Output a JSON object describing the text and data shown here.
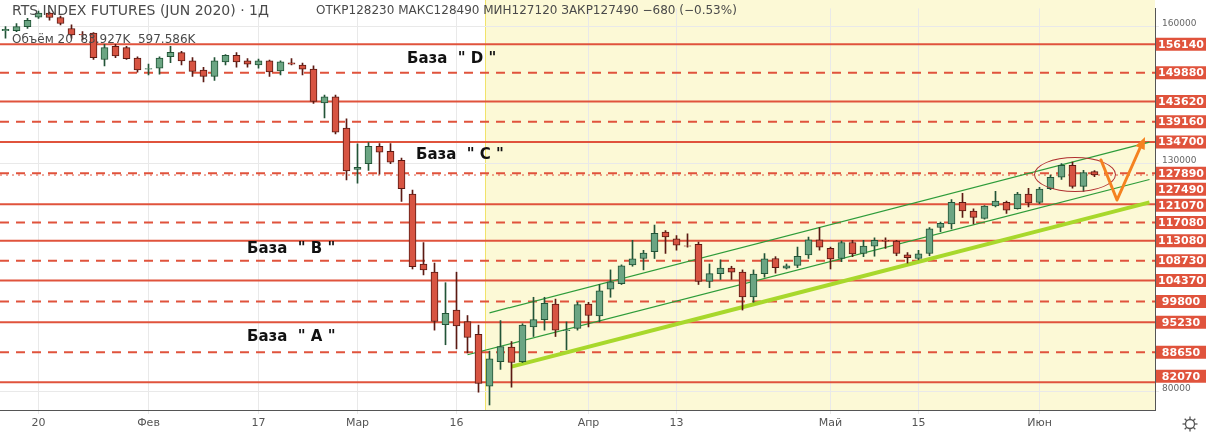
{
  "chart_data": {
    "type": "candlestick",
    "title": "RTS INDEX FUTURES (JUN 2020) · 1Д",
    "subtitle": "ОТКР128230  МАКС128490  МИН127120  ЗАКР127490  −680 (−0.53%)",
    "categories": [
      null,
      null,
      null,
      "20",
      null,
      null,
      null,
      null,
      null,
      null,
      null,
      null,
      null,
      "Фев",
      null,
      null,
      null,
      null,
      null,
      null,
      null,
      null,
      null,
      "17",
      null,
      null,
      null,
      null,
      null,
      null,
      null,
      null,
      "Мар",
      null,
      null,
      null,
      null,
      null,
      null,
      null,
      null,
      "16",
      null,
      null,
      null,
      null,
      null,
      null,
      null,
      null,
      null,
      null,
      null,
      "Апр",
      null,
      null,
      null,
      null,
      null,
      null,
      null,
      "13",
      null,
      null,
      null,
      null,
      null,
      null,
      null,
      null,
      null,
      null,
      null,
      null,
      null,
      "Май",
      null,
      null,
      null,
      null,
      null,
      null,
      null,
      "15",
      null,
      null,
      null,
      null,
      null,
      null,
      null,
      null,
      null,
      null,
      "Июн",
      null,
      null,
      null,
      null,
      null,
      null,
      null,
      null,
      null,
      null
    ],
    "ohlc": [
      [
        159100,
        160000,
        157500,
        159400
      ],
      [
        159100,
        160700,
        158900,
        160000
      ],
      [
        160000,
        161800,
        159600,
        161400
      ],
      [
        162100,
        163400,
        161800,
        163000
      ],
      [
        163000,
        163200,
        161400,
        162000
      ],
      [
        162000,
        162300,
        160400,
        160700
      ],
      [
        159600,
        160400,
        157500,
        158200
      ],
      [
        158300,
        158900,
        157100,
        158200
      ],
      [
        158600,
        158700,
        152800,
        153200
      ],
      [
        152800,
        156100,
        151400,
        155400
      ],
      [
        155700,
        156100,
        153200,
        153600
      ],
      [
        155400,
        155700,
        152800,
        153000
      ],
      [
        153100,
        153400,
        150000,
        150500
      ],
      [
        150700,
        151800,
        149400,
        150800
      ],
      [
        150900,
        153400,
        149600,
        153100
      ],
      [
        153400,
        155700,
        152100,
        154400
      ],
      [
        154300,
        154600,
        151600,
        152500
      ],
      [
        152500,
        153200,
        149100,
        150200
      ],
      [
        150500,
        151100,
        147900,
        149100
      ],
      [
        149100,
        153200,
        148200,
        152500
      ],
      [
        152300,
        153900,
        151600,
        153700
      ],
      [
        153700,
        154300,
        151100,
        152300
      ],
      [
        152500,
        153000,
        151100,
        151800
      ],
      [
        151600,
        152900,
        150900,
        152500
      ],
      [
        152500,
        152700,
        149100,
        150100
      ],
      [
        150300,
        152500,
        149400,
        152300
      ],
      [
        152100,
        153000,
        151600,
        151800
      ],
      [
        151600,
        152000,
        149400,
        150700
      ],
      [
        150700,
        151400,
        143200,
        143600
      ],
      [
        143300,
        145000,
        140000,
        144600
      ],
      [
        144600,
        145000,
        136500,
        136900
      ],
      [
        137800,
        139800,
        126400,
        128400
      ],
      [
        128700,
        134300,
        125700,
        129200
      ],
      [
        130000,
        134600,
        128500,
        133800
      ],
      [
        133800,
        134400,
        127700,
        132500
      ],
      [
        132700,
        134400,
        130000,
        130300
      ],
      [
        130700,
        131200,
        121700,
        124500
      ],
      [
        123300,
        124200,
        106900,
        107400
      ],
      [
        108000,
        112700,
        105600,
        106700
      ],
      [
        106200,
        108200,
        93500,
        95400
      ],
      [
        94700,
        103900,
        90300,
        97200
      ],
      [
        97900,
        106200,
        89400,
        94400
      ],
      [
        95400,
        96700,
        88500,
        91900
      ],
      [
        92600,
        94600,
        79900,
        81800
      ],
      [
        81200,
        88900,
        77100,
        87200
      ],
      [
        86600,
        95600,
        84900,
        89900
      ],
      [
        89800,
        91000,
        81000,
        86400
      ],
      [
        86600,
        94900,
        86400,
        94600
      ],
      [
        94200,
        100700,
        92100,
        95800
      ],
      [
        95800,
        100700,
        93500,
        99400
      ],
      [
        99200,
        100300,
        92100,
        93500
      ],
      [
        93400,
        95300,
        89200,
        93500
      ],
      [
        93900,
        99600,
        93500,
        99100
      ],
      [
        99200,
        99600,
        94200,
        96700
      ],
      [
        96600,
        103500,
        95300,
        102100
      ],
      [
        102500,
        106700,
        100700,
        104100
      ],
      [
        103700,
        107800,
        103500,
        107600
      ],
      [
        107800,
        113200,
        107500,
        109100
      ],
      [
        109200,
        111000,
        106700,
        110400
      ],
      [
        110700,
        116500,
        109200,
        114700
      ],
      [
        115000,
        115300,
        110300,
        113900
      ],
      [
        113500,
        114200,
        111000,
        112100
      ],
      [
        112000,
        114600,
        111700,
        111900
      ],
      [
        112300,
        112800,
        103500,
        104200
      ],
      [
        104200,
        108000,
        102800,
        105900
      ],
      [
        105900,
        108900,
        104600,
        107100
      ],
      [
        107100,
        107500,
        104600,
        106200
      ],
      [
        106200,
        106700,
        97900,
        100800
      ],
      [
        100800,
        106700,
        99600,
        105800
      ],
      [
        105900,
        110300,
        105100,
        109100
      ],
      [
        109200,
        109600,
        106000,
        107200
      ],
      [
        107100,
        108000,
        106900,
        107600
      ],
      [
        107700,
        111700,
        107200,
        109700
      ],
      [
        110000,
        113900,
        109200,
        113300
      ],
      [
        113300,
        116000,
        111000,
        111700
      ],
      [
        111400,
        111700,
        106900,
        109100
      ],
      [
        109200,
        113000,
        108500,
        112700
      ],
      [
        112700,
        113200,
        109600,
        110200
      ],
      [
        110300,
        113200,
        109600,
        111900
      ],
      [
        111900,
        113700,
        109700,
        113200
      ],
      [
        113200,
        113700,
        111400,
        113000
      ],
      [
        113000,
        113200,
        109800,
        110300
      ],
      [
        110000,
        110500,
        108200,
        109400
      ],
      [
        109200,
        111000,
        108900,
        110200
      ],
      [
        110300,
        116000,
        109800,
        115700
      ],
      [
        116000,
        117200,
        115100,
        116900
      ],
      [
        116800,
        122100,
        115700,
        121500
      ],
      [
        121500,
        123500,
        118200,
        119600
      ],
      [
        119600,
        120100,
        116800,
        118200
      ],
      [
        118000,
        120800,
        117800,
        120700
      ],
      [
        120700,
        123900,
        120500,
        121800
      ],
      [
        121500,
        121800,
        119100,
        119800
      ],
      [
        120100,
        123700,
        120000,
        123300
      ],
      [
        123300,
        124600,
        120500,
        121400
      ],
      [
        121500,
        124800,
        121200,
        124400
      ],
      [
        124500,
        127500,
        124300,
        127000
      ],
      [
        127000,
        130000,
        126500,
        129600
      ],
      [
        129600,
        130300,
        124600,
        125000
      ],
      [
        125000,
        128500,
        123900,
        128000
      ],
      [
        128230,
        128490,
        127120,
        127490
      ],
      null,
      null,
      null,
      null,
      null
    ],
    "series": [
      {
        "type": "line",
        "color": "#2e9c3a",
        "values": [
          null,
          null,
          null,
          null,
          null,
          null,
          null,
          null,
          null,
          null,
          null,
          null,
          null,
          null,
          null,
          null,
          null,
          null,
          null,
          null,
          null,
          null,
          null,
          null,
          null,
          null,
          null,
          null,
          null,
          null,
          null,
          null,
          null,
          null,
          null,
          null,
          null,
          null,
          null,
          null,
          null,
          null,
          null,
          null,
          97300,
          null,
          null,
          null,
          null,
          null,
          null,
          null,
          null,
          null,
          null,
          null,
          null,
          null,
          null,
          null,
          null,
          null,
          null,
          null,
          null,
          null,
          null,
          null,
          null,
          null,
          null,
          null,
          null,
          null,
          null,
          null,
          null,
          null,
          null,
          null,
          null,
          null,
          null,
          null,
          null,
          null,
          null,
          null,
          null,
          null,
          null,
          null,
          null,
          null,
          null,
          null,
          null,
          null,
          null,
          null,
          null,
          null,
          null,
          null,
          134700
        ]
      },
      {
        "type": "line",
        "color": "#2e9c3a",
        "values": [
          null,
          null,
          null,
          null,
          null,
          null,
          null,
          null,
          null,
          null,
          null,
          null,
          null,
          null,
          null,
          null,
          null,
          null,
          null,
          null,
          null,
          null,
          null,
          null,
          null,
          null,
          null,
          null,
          null,
          null,
          null,
          null,
          null,
          null,
          null,
          null,
          null,
          null,
          null,
          null,
          null,
          null,
          88100,
          null,
          null,
          null,
          null,
          null,
          null,
          null,
          null,
          null,
          null,
          null,
          null,
          null,
          null,
          null,
          null,
          null,
          null,
          null,
          null,
          null,
          null,
          null,
          null,
          null,
          null,
          null,
          null,
          null,
          null,
          null,
          null,
          null,
          null,
          null,
          null,
          null,
          null,
          null,
          null,
          null,
          null,
          null,
          null,
          null,
          null,
          null,
          null,
          null,
          null,
          null,
          null,
          null,
          null,
          null,
          null,
          null,
          null,
          null,
          null,
          null,
          126500
        ]
      },
      {
        "type": "line",
        "color": "#a8d82c",
        "values": [
          null,
          null,
          null,
          null,
          null,
          null,
          null,
          null,
          null,
          null,
          null,
          null,
          null,
          null,
          null,
          null,
          null,
          null,
          null,
          null,
          null,
          null,
          null,
          null,
          null,
          null,
          null,
          null,
          null,
          null,
          null,
          null,
          null,
          null,
          null,
          null,
          null,
          null,
          null,
          null,
          null,
          null,
          null,
          null,
          null,
          null,
          85500,
          null,
          null,
          null,
          null,
          null,
          null,
          null,
          null,
          null,
          null,
          null,
          null,
          null,
          null,
          null,
          null,
          null,
          null,
          null,
          null,
          null,
          null,
          null,
          null,
          null,
          null,
          null,
          null,
          null,
          null,
          null,
          null,
          null,
          null,
          null,
          null,
          null,
          null,
          null,
          null,
          null,
          null,
          null,
          null,
          null,
          null,
          null,
          null,
          null,
          null,
          null,
          null,
          null,
          null,
          null,
          null,
          null,
          121500
        ]
      }
    ],
    "ylim": [
      76000,
      164000
    ],
    "yticks": [
      80000,
      130000,
      160000
    ],
    "grid": true,
    "ref_lines": [
      {
        "axis": "y",
        "value": 156140,
        "label": "156140",
        "color": "#e0533c",
        "line_style": "solid"
      },
      {
        "axis": "y",
        "value": 149880,
        "label": "149880",
        "color": "#e0533c",
        "line_style": "dashed"
      },
      {
        "axis": "y",
        "value": 143620,
        "label": "143620",
        "color": "#e0533c",
        "line_style": "solid"
      },
      {
        "axis": "y",
        "value": 139160,
        "label": "139160",
        "color": "#e0533c",
        "line_style": "dashed"
      },
      {
        "axis": "y",
        "value": 134700,
        "label": "134700",
        "color": "#e0533c",
        "line_style": "solid"
      },
      {
        "axis": "y",
        "value": 127890,
        "label": "127890",
        "color": "#e0533c",
        "line_style": "dashed"
      },
      {
        "axis": "y",
        "value": 127490,
        "label": "127490",
        "color": "#e0533c",
        "line_style": "dotted"
      },
      {
        "axis": "y",
        "value": 121070,
        "label": "121070",
        "color": "#e0533c",
        "line_style": "solid"
      },
      {
        "axis": "y",
        "value": 117080,
        "label": "117080",
        "color": "#e0533c",
        "line_style": "dashed"
      },
      {
        "axis": "y",
        "value": 113080,
        "label": "113080",
        "color": "#e0533c",
        "line_style": "solid"
      },
      {
        "axis": "y",
        "value": 108730,
        "label": "108730",
        "color": "#e0533c",
        "line_style": "dashed"
      },
      {
        "axis": "y",
        "value": 104370,
        "label": "104370",
        "color": "#e0533c",
        "line_style": "solid"
      },
      {
        "axis": "y",
        "value": 99800,
        "label": "99800",
        "color": "#e0533c",
        "line_style": "dashed"
      },
      {
        "axis": "y",
        "value": 95230,
        "label": "95230",
        "color": "#e0533c",
        "line_style": "solid"
      },
      {
        "axis": "y",
        "value": 88650,
        "label": "88650",
        "color": "#e0533c",
        "line_style": "dashed"
      },
      {
        "axis": "y",
        "value": 82070,
        "label": "82070",
        "color": "#e0533c",
        "line_style": "solid"
      }
    ],
    "annotations": [
      "Объём 20  83.927K  597.586K",
      "База  \" D \"",
      "База  \" C \"",
      "База  \" B \"",
      "База  \" A \""
    ]
  }
}
